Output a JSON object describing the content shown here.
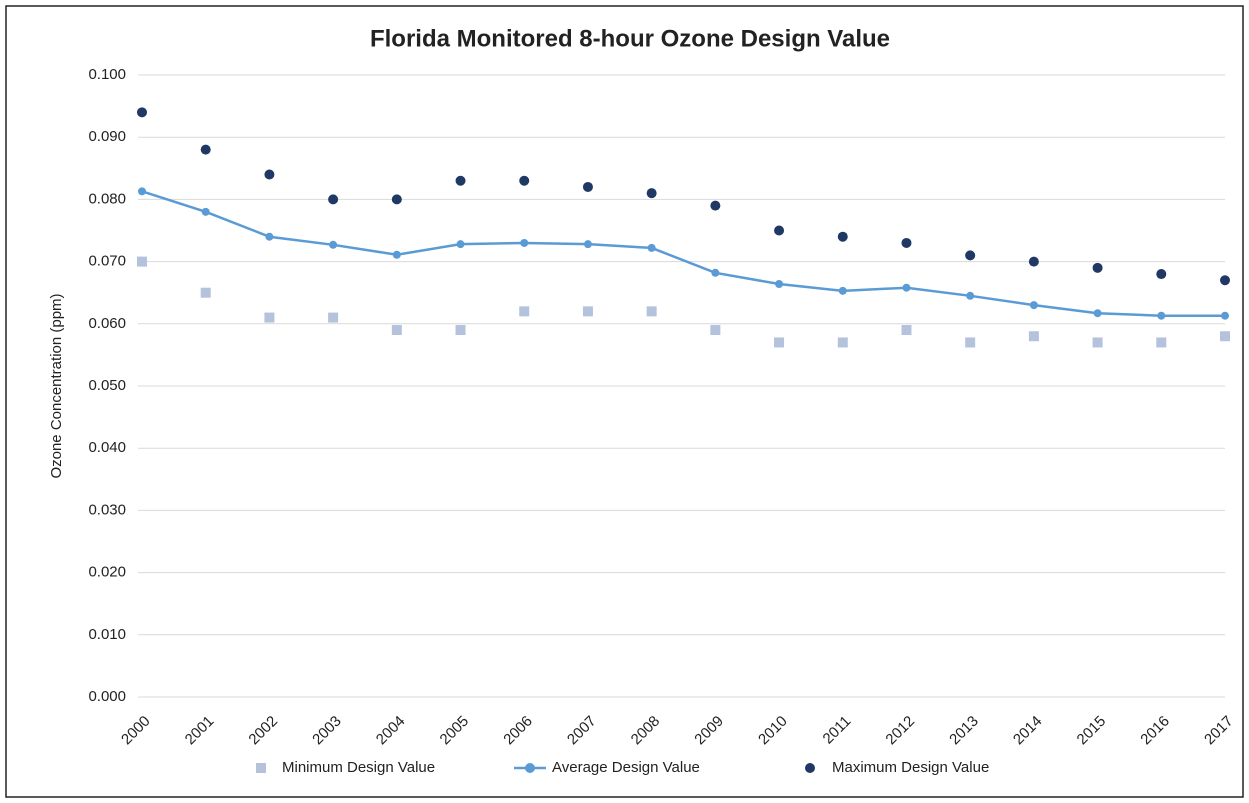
{
  "chart_data": {
    "type": "line",
    "title": "Florida Monitored 8-hour Ozone Design Value",
    "y_label": "Ozone Concentration (ppm)",
    "categories": [
      "2000",
      "2001",
      "2002",
      "2003",
      "2004",
      "2005",
      "2006",
      "2007",
      "2008",
      "2009",
      "2010",
      "2011",
      "2012",
      "2013",
      "2014",
      "2015",
      "2016",
      "2017"
    ],
    "series": [
      {
        "name": "Minimum Design Value",
        "color": "#b4c3db",
        "marker": "square",
        "line": false,
        "values": [
          0.07,
          0.065,
          0.061,
          0.061,
          0.059,
          0.059,
          0.062,
          0.062,
          0.062,
          0.059,
          0.057,
          0.057,
          0.059,
          0.057,
          0.058,
          0.057,
          0.057,
          0.058
        ]
      },
      {
        "name": "Average Design Value",
        "color": "#5b9bd5",
        "marker": "circle",
        "line": true,
        "values": [
          0.0813,
          0.078,
          0.074,
          0.0727,
          0.0711,
          0.0728,
          0.073,
          0.0728,
          0.0722,
          0.0682,
          0.0664,
          0.0653,
          0.0658,
          0.0645,
          0.063,
          0.0617,
          0.0613,
          0.0613
        ]
      },
      {
        "name": "Maximum Design Value",
        "color": "#203864",
        "marker": "circle",
        "line": false,
        "values": [
          0.094,
          0.088,
          0.084,
          0.08,
          0.08,
          0.083,
          0.083,
          0.082,
          0.081,
          0.079,
          0.075,
          0.074,
          0.073,
          0.071,
          0.07,
          0.069,
          0.068,
          0.067
        ]
      }
    ],
    "ylim": [
      0,
      0.1
    ],
    "yticks": [
      {
        "value": 0,
        "label": "0.000"
      },
      {
        "value": 0.01,
        "label": "0.010"
      },
      {
        "value": 0.02,
        "label": "0.020"
      },
      {
        "value": 0.03,
        "label": "0.030"
      },
      {
        "value": 0.04,
        "label": "0.040"
      },
      {
        "value": 0.05,
        "label": "0.050"
      },
      {
        "value": 0.06,
        "label": "0.060"
      },
      {
        "value": 0.07,
        "label": "0.070"
      },
      {
        "value": 0.08,
        "label": "0.080"
      },
      {
        "value": 0.09,
        "label": "0.090"
      },
      {
        "value": 0.1,
        "label": "0.100"
      }
    ],
    "grid": true,
    "legend": "bottom"
  }
}
